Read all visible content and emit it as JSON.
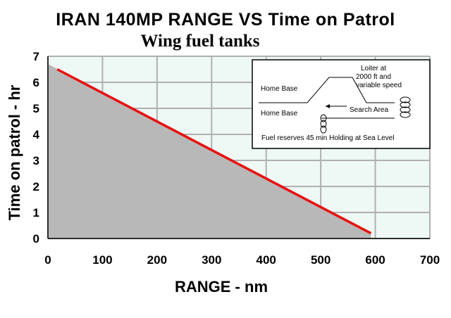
{
  "title": "IRAN 140MP RANGE VS Time on Patrol",
  "subtitle": "Wing fuel tanks",
  "chart_data": {
    "type": "area",
    "title": "IRAN 140MP RANGE VS Time on Patrol",
    "subtitle": "Wing fuel tanks",
    "xlabel": "RANGE - nm",
    "ylabel": "Time on patrol - hr",
    "xlim": [
      0,
      700
    ],
    "ylim": [
      0,
      7
    ],
    "xticks": [
      "0",
      "100",
      "200",
      "300",
      "400",
      "500",
      "600",
      "700"
    ],
    "yticks": [
      "0",
      "1",
      "2",
      "3",
      "4",
      "5",
      "6",
      "7"
    ],
    "grid": true,
    "series": [
      {
        "type": "area",
        "x": [
          0,
          592
        ],
        "y": [
          6.7,
          0.2
        ],
        "color": "#b8b8b8"
      },
      {
        "type": "line",
        "x": [
          17,
          592
        ],
        "y": [
          6.5,
          0.2
        ],
        "color": "#e81010"
      }
    ],
    "colors": {
      "plot_bg": "#eef8f4",
      "grid": "#b0b0b0",
      "area": "#b8b8b8",
      "line": "#e81010"
    }
  },
  "inset": {
    "labels": {
      "home_base_top": "Home Base",
      "home_base_bottom": "Home Base",
      "loiter_1": "Loiter at",
      "loiter_2": "2000 ft and",
      "loiter_3": "variable speed",
      "search_area": "Search Area",
      "fuel_reserves": "Fuel reserves 45 min Holding at Sea Level"
    }
  }
}
